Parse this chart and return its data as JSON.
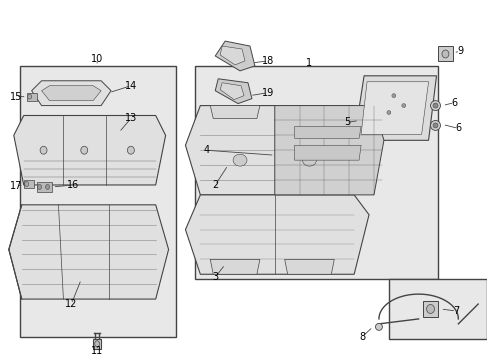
{
  "bg": "#f0f0f0",
  "white": "#ffffff",
  "lc": "#444444",
  "fig_bg": "#ffffff",
  "box_fill": "#e8e8e8",
  "part_fill": "#e0e0e0",
  "part_fill2": "#d8d8d8",
  "label_size": 7
}
